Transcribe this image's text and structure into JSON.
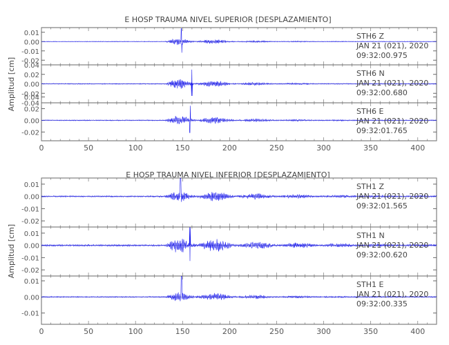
{
  "chart_data": [
    {
      "type": "line",
      "title": "E HOSP TRAUMA NIVEL SUPERIOR [DESPLAZAMIENTO]",
      "xlabel": "",
      "ylabel": "Amplitud [cm]",
      "xlim": [
        0,
        420
      ],
      "x_ticks": [
        "0",
        "50",
        "100",
        "150",
        "200",
        "250",
        "300",
        "350",
        "400"
      ],
      "series_color": "#1a1aee",
      "panels": [
        {
          "station": "STH6",
          "component": "Z",
          "date": "JAN 21 (021), 2020",
          "time": "09:32:00.975",
          "ylim": [
            -0.025,
            0.015
          ],
          "y_ticks": [
            "0.01",
            "0.00",
            "-0.01",
            "-0.02"
          ],
          "wave": {
            "onset": 131,
            "peak": 149,
            "tail": 230,
            "peak_amp": 0.014,
            "env": 0.0055,
            "noise": 0.0003,
            "seed": 11
          }
        },
        {
          "station": "STH6",
          "component": "N",
          "date": "JAN 21 (021), 2020",
          "time": "09:32:00.680",
          "ylim": [
            -0.04,
            0.04
          ],
          "y_ticks": [
            "0.04",
            "0.02",
            "0.00",
            "-0.02",
            "-0.04"
          ],
          "wave": {
            "onset": 131,
            "peak": 160,
            "tail": 235,
            "peak_amp": 0.03,
            "env": 0.016,
            "noise": 0.0008,
            "seed": 23
          }
        },
        {
          "station": "STH6",
          "component": "E",
          "date": "JAN 21 (021), 2020",
          "time": "09:32:01.765",
          "ylim": [
            -0.035,
            0.03
          ],
          "y_ticks": [
            "0.04",
            "0.02",
            "0.00",
            "-0.02"
          ],
          "wave": {
            "onset": 131,
            "peak": 158,
            "tail": 235,
            "peak_amp": 0.025,
            "env": 0.013,
            "noise": 0.0007,
            "seed": 37
          }
        }
      ]
    },
    {
      "type": "line",
      "title": "E HOSP TRAUMA NIVEL INFERIOR [DESPLAZAMIENTO]",
      "xlabel": "",
      "ylabel": "Amplitud [cm]",
      "xlim": [
        0,
        420
      ],
      "x_ticks": [
        "0",
        "50",
        "100",
        "150",
        "200",
        "250",
        "300",
        "350",
        "400"
      ],
      "series_color": "#1a1aee",
      "panels": [
        {
          "station": "STH1",
          "component": "Z",
          "date": "JAN 21 (021), 2020",
          "time": "09:32:01.565",
          "ylim": [
            -0.025,
            0.015
          ],
          "y_ticks": [
            "0.01",
            "0.00",
            "-0.01",
            "-0.02"
          ],
          "wave": {
            "onset": 131,
            "peak": 148,
            "tail": 300,
            "peak_amp": 0.016,
            "env": 0.006,
            "noise": 0.0005,
            "seed": 53
          }
        },
        {
          "station": "STH1",
          "component": "N",
          "date": "JAN 21 (021), 2020",
          "time": "09:32:00.620",
          "ylim": [
            -0.025,
            0.015
          ],
          "y_ticks": [
            "0.01",
            "0.00",
            "-0.01",
            "-0.02"
          ],
          "wave": {
            "onset": 131,
            "peak": 158,
            "tail": 300,
            "peak_amp": 0.015,
            "env": 0.0085,
            "noise": 0.0006,
            "seed": 71
          }
        },
        {
          "station": "STH1",
          "component": "E",
          "date": "JAN 21 (021), 2020",
          "time": "09:32:00.335",
          "ylim": [
            -0.017,
            0.013
          ],
          "y_ticks": [
            "0.01",
            "0.00",
            "-0.01"
          ],
          "wave": {
            "onset": 131,
            "peak": 149,
            "tail": 250,
            "peak_amp": 0.013,
            "env": 0.0045,
            "noise": 0.0003,
            "seed": 89
          }
        }
      ]
    }
  ]
}
